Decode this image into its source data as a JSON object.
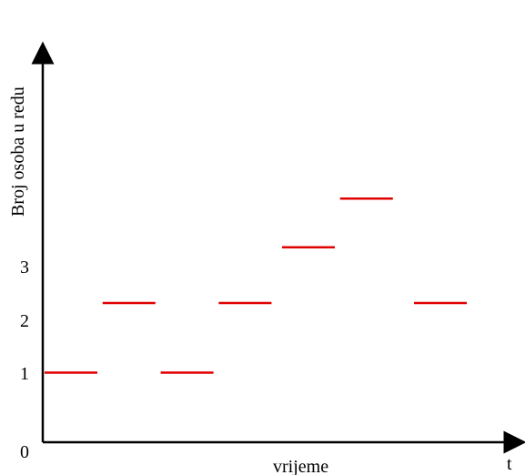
{
  "chart_data": {
    "type": "line",
    "title": "",
    "ylabel": "Broj osoba u redu",
    "xlabel": "vrijeme",
    "x_end_label": "t",
    "origin_label": "0",
    "y_ticks": [
      "1",
      "2",
      "3"
    ],
    "y_tick_values": [
      1,
      2,
      3
    ],
    "series": [
      {
        "segments": [
          {
            "x": [
              0,
              1
            ],
            "y": 1
          },
          {
            "x": [
              1.1,
              2.1
            ],
            "y": 2
          },
          {
            "x": [
              2.2,
              3.2
            ],
            "y": 1
          },
          {
            "x": [
              3.3,
              4.3
            ],
            "y": 2
          },
          {
            "x": [
              4.5,
              5.5
            ],
            "y": 2.8
          },
          {
            "x": [
              5.6,
              6.6
            ],
            "y": 3.5
          },
          {
            "x": [
              7.0,
              8.0
            ],
            "y": 2
          }
        ]
      }
    ],
    "xlim": [
      0,
      9.1
    ],
    "ylim": [
      0,
      7.5
    ],
    "grid": false,
    "colors": {
      "series": "#e00000",
      "axis": "#000000"
    }
  }
}
